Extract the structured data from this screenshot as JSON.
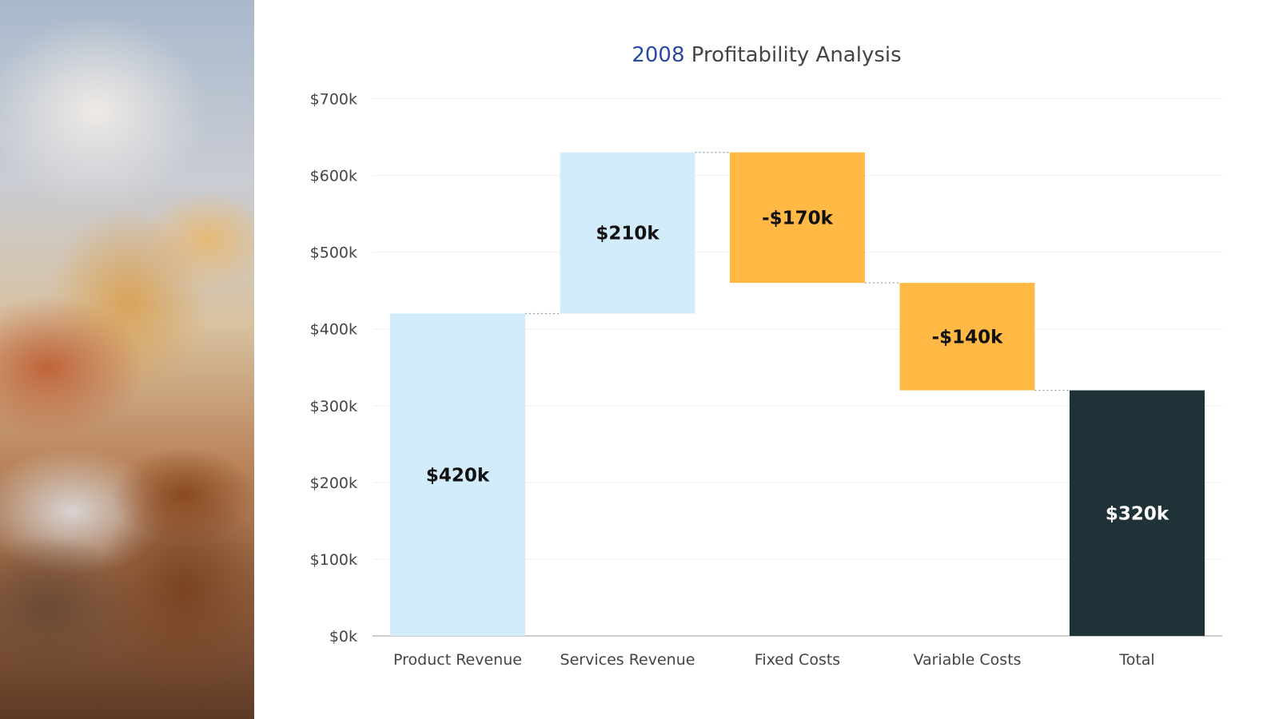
{
  "chart_data": {
    "type": "waterfall",
    "title_year": "2008",
    "title_text": "Profitability Analysis",
    "categories": [
      "Product Revenue",
      "Services Revenue",
      "Fixed Costs",
      "Variable Costs",
      "Total"
    ],
    "values": [
      420,
      210,
      -170,
      -140,
      320
    ],
    "kinds": [
      "increase",
      "increase",
      "decrease",
      "decrease",
      "total"
    ],
    "data_labels": [
      "$420k",
      "$210k",
      "-$170k",
      "-$140k",
      "$320k"
    ],
    "y_ticks": [
      "$0k",
      "$100k",
      "$200k",
      "$300k",
      "$400k",
      "$500k",
      "$600k",
      "$700k"
    ],
    "ylim": [
      0,
      700
    ],
    "units": "thousands of dollars",
    "grid": true,
    "colors": {
      "increase": "#d3ecfb",
      "decrease": "#ffb944",
      "total": "#1f3237",
      "title_year": "#2a4aa0",
      "connector": "#8aa0b0"
    }
  }
}
